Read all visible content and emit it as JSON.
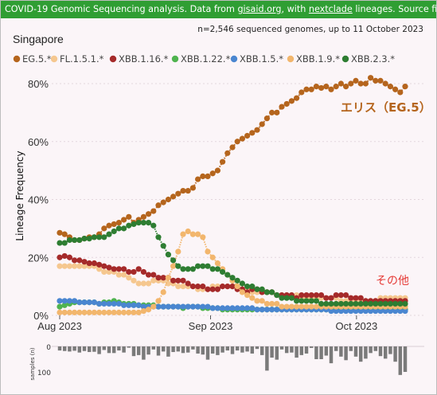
{
  "banner": {
    "prefix": "COVID-19 Genomic Sequencing analysis. Data from ",
    "link1": "gisaid.org",
    "middle": ", with ",
    "link2": "nextclade",
    "suffix": " lineages. Source files and more info"
  },
  "chart_data": {
    "type": "line",
    "title": "Singapore",
    "subtitle": "n=2,546 sequenced genomes, up to 11 October 2023",
    "ylabel": "Lineage Frequency",
    "samples_label": "samples (n)",
    "x_start": "2023-08-01",
    "x_end": "2023-10-11",
    "xticks": [
      {
        "date": "2023-08-01",
        "label": "Aug 2023"
      },
      {
        "date": "2023-09-01",
        "label": "Sep 2023"
      },
      {
        "date": "2023-10-01",
        "label": "Oct 2023"
      }
    ],
    "ylim": [
      0,
      0.8
    ],
    "yticks": [
      {
        "value": 0,
        "label": "0%"
      },
      {
        "value": 0.2,
        "label": "20%"
      },
      {
        "value": 0.4,
        "label": "40%"
      },
      {
        "value": 0.6,
        "label": "60%"
      },
      {
        "value": 0.8,
        "label": "80%"
      }
    ],
    "samples_ticks": [
      {
        "value": 0,
        "label": "0"
      },
      {
        "value": 100,
        "label": "100"
      }
    ],
    "grid": true,
    "legend_position": "top-left",
    "series": [
      {
        "name": "EG.5.*",
        "color": "#b5651d",
        "values": [
          0.285,
          0.28,
          0.27,
          0.26,
          0.26,
          0.265,
          0.27,
          0.27,
          0.28,
          0.3,
          0.31,
          0.315,
          0.32,
          0.33,
          0.34,
          0.32,
          0.33,
          0.34,
          0.35,
          0.36,
          0.38,
          0.39,
          0.4,
          0.41,
          0.42,
          0.43,
          0.43,
          0.44,
          0.47,
          0.48,
          0.48,
          0.49,
          0.5,
          0.53,
          0.56,
          0.58,
          0.6,
          0.61,
          0.62,
          0.63,
          0.64,
          0.66,
          0.68,
          0.7,
          0.7,
          0.72,
          0.73,
          0.74,
          0.75,
          0.77,
          0.78,
          0.78,
          0.79,
          0.785,
          0.79,
          0.78,
          0.79,
          0.8,
          0.79,
          0.8,
          0.81,
          0.8,
          0.8,
          0.82,
          0.81,
          0.81,
          0.8,
          0.79,
          0.78,
          0.77,
          0.79
        ]
      },
      {
        "name": "FL.1.5.1.*",
        "color": "#f5c78f",
        "values": [
          0.17,
          0.17,
          0.17,
          0.17,
          0.17,
          0.17,
          0.17,
          0.17,
          0.16,
          0.15,
          0.15,
          0.15,
          0.14,
          0.14,
          0.13,
          0.12,
          0.11,
          0.11,
          0.11,
          0.12,
          0.12,
          0.12,
          0.11,
          0.11,
          0.1,
          0.1,
          0.1,
          0.1,
          0.09,
          0.09,
          0.09,
          0.1,
          0.1,
          0.1,
          0.1,
          0.1,
          0.1,
          0.09,
          0.09,
          0.08,
          0.08,
          0.08,
          0.08,
          0.08,
          0.07,
          0.07,
          0.07,
          0.07,
          0.07,
          0.06,
          0.06,
          0.06,
          0.06,
          0.06,
          0.06,
          0.06,
          0.06,
          0.05,
          0.05,
          0.05,
          0.05,
          0.05,
          0.05,
          0.05,
          0.05,
          0.06,
          0.06,
          0.06,
          0.06,
          0.06,
          0.06
        ]
      },
      {
        "name": "XBB.1.16.*",
        "color": "#a52a2a",
        "values": [
          0.2,
          0.205,
          0.2,
          0.19,
          0.19,
          0.185,
          0.18,
          0.18,
          0.175,
          0.17,
          0.165,
          0.16,
          0.16,
          0.16,
          0.15,
          0.15,
          0.16,
          0.15,
          0.14,
          0.14,
          0.13,
          0.13,
          0.13,
          0.12,
          0.12,
          0.12,
          0.11,
          0.1,
          0.1,
          0.1,
          0.09,
          0.09,
          0.09,
          0.1,
          0.1,
          0.1,
          0.09,
          0.09,
          0.08,
          0.09,
          0.09,
          0.08,
          0.08,
          0.08,
          0.07,
          0.07,
          0.07,
          0.07,
          0.06,
          0.07,
          0.07,
          0.07,
          0.07,
          0.07,
          0.06,
          0.06,
          0.07,
          0.07,
          0.07,
          0.06,
          0.06,
          0.06,
          0.05,
          0.05,
          0.05,
          0.05,
          0.05,
          0.05,
          0.05,
          0.05,
          0.05
        ]
      },
      {
        "name": "XBB.1.22.*",
        "color": "#4fb34f",
        "values": [
          0.03,
          0.035,
          0.04,
          0.045,
          0.045,
          0.045,
          0.045,
          0.045,
          0.04,
          0.045,
          0.045,
          0.05,
          0.045,
          0.04,
          0.04,
          0.04,
          0.035,
          0.035,
          0.035,
          0.035,
          0.03,
          0.03,
          0.03,
          0.03,
          0.03,
          0.025,
          0.03,
          0.03,
          0.03,
          0.025,
          0.025,
          0.025,
          0.025,
          0.02,
          0.02,
          0.02,
          0.02,
          0.02,
          0.02,
          0.02,
          0.02,
          0.02,
          0.02,
          0.02,
          0.02,
          0.02,
          0.02,
          0.02,
          0.02,
          0.02,
          0.02,
          0.02,
          0.02,
          0.02,
          0.02,
          0.02,
          0.02,
          0.02,
          0.02,
          0.02,
          0.02,
          0.02,
          0.02,
          0.02,
          0.02,
          0.02,
          0.02,
          0.02,
          0.02,
          0.02,
          0.02
        ]
      },
      {
        "name": "XBB.1.5.*",
        "color": "#4a86d0",
        "values": [
          0.05,
          0.05,
          0.05,
          0.05,
          0.045,
          0.045,
          0.045,
          0.045,
          0.04,
          0.04,
          0.04,
          0.04,
          0.04,
          0.035,
          0.035,
          0.035,
          0.035,
          0.03,
          0.03,
          0.03,
          0.03,
          0.03,
          0.03,
          0.03,
          0.03,
          0.03,
          0.03,
          0.03,
          0.03,
          0.03,
          0.03,
          0.025,
          0.025,
          0.025,
          0.025,
          0.025,
          0.025,
          0.025,
          0.025,
          0.025,
          0.02,
          0.02,
          0.02,
          0.02,
          0.02,
          0.02,
          0.02,
          0.02,
          0.02,
          0.02,
          0.02,
          0.02,
          0.02,
          0.02,
          0.02,
          0.015,
          0.015,
          0.015,
          0.015,
          0.015,
          0.015,
          0.015,
          0.015,
          0.015,
          0.015,
          0.015,
          0.015,
          0.015,
          0.015,
          0.015,
          0.015
        ]
      },
      {
        "name": "XBB.1.9.*",
        "color": "#f2b66d",
        "values": [
          0.01,
          0.01,
          0.01,
          0.01,
          0.01,
          0.01,
          0.01,
          0.01,
          0.01,
          0.01,
          0.01,
          0.01,
          0.01,
          0.01,
          0.01,
          0.01,
          0.01,
          0.015,
          0.02,
          0.03,
          0.05,
          0.08,
          0.13,
          0.17,
          0.22,
          0.28,
          0.29,
          0.28,
          0.28,
          0.27,
          0.22,
          0.2,
          0.18,
          0.16,
          0.14,
          0.12,
          0.1,
          0.08,
          0.07,
          0.06,
          0.05,
          0.05,
          0.04,
          0.04,
          0.04,
          0.03,
          0.03,
          0.03,
          0.03,
          0.03,
          0.03,
          0.03,
          0.03,
          0.03,
          0.03,
          0.03,
          0.03,
          0.03,
          0.03,
          0.03,
          0.03,
          0.03,
          0.03,
          0.03,
          0.03,
          0.03,
          0.03,
          0.03,
          0.03,
          0.03,
          0.03
        ]
      },
      {
        "name": "XBB.2.3.*",
        "color": "#2e7d32",
        "values": [
          0.25,
          0.25,
          0.26,
          0.26,
          0.26,
          0.265,
          0.265,
          0.27,
          0.27,
          0.27,
          0.28,
          0.29,
          0.3,
          0.3,
          0.31,
          0.315,
          0.32,
          0.32,
          0.32,
          0.31,
          0.27,
          0.24,
          0.21,
          0.19,
          0.17,
          0.16,
          0.16,
          0.16,
          0.17,
          0.17,
          0.17,
          0.16,
          0.16,
          0.15,
          0.14,
          0.13,
          0.12,
          0.11,
          0.1,
          0.1,
          0.09,
          0.09,
          0.08,
          0.08,
          0.07,
          0.06,
          0.06,
          0.06,
          0.05,
          0.05,
          0.05,
          0.05,
          0.05,
          0.04,
          0.04,
          0.04,
          0.04,
          0.04,
          0.04,
          0.04,
          0.04,
          0.04,
          0.04,
          0.04,
          0.04,
          0.04,
          0.04,
          0.04,
          0.04,
          0.04,
          0.04
        ]
      }
    ],
    "samples": [
      16,
      18,
      20,
      17,
      24,
      18,
      22,
      21,
      30,
      14,
      26,
      26,
      16,
      24,
      5,
      38,
      34,
      52,
      32,
      12,
      36,
      20,
      40,
      22,
      20,
      26,
      24,
      12,
      28,
      32,
      52,
      28,
      34,
      24,
      16,
      30,
      16,
      24,
      20,
      28,
      10,
      34,
      95,
      44,
      52,
      12,
      26,
      24,
      44,
      34,
      28,
      6,
      50,
      50,
      36,
      66,
      18,
      40,
      54,
      18,
      40,
      60,
      48,
      26,
      18,
      38,
      48,
      30,
      60,
      112,
      100
    ],
    "annotations": [
      {
        "text": "エリス（EG.5）",
        "color": "#b5651d"
      },
      {
        "text": "その他",
        "color": "#e53935"
      }
    ]
  }
}
